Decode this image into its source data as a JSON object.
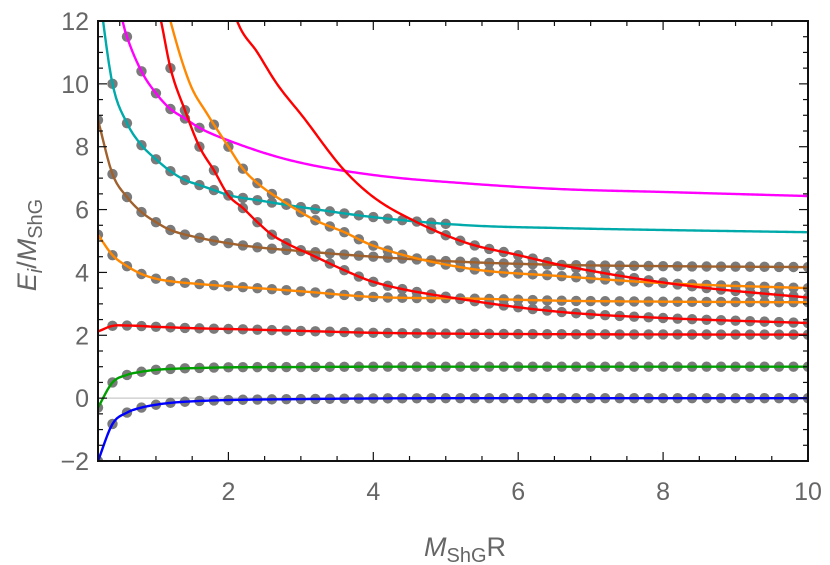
{
  "chart_data": {
    "type": "line",
    "title": "",
    "xlabel": {
      "main": "M",
      "sub": "ShG",
      "suffix": "R"
    },
    "ylabel": {
      "main": "E",
      "sub1": "i",
      "slash": "/",
      "main2": "M",
      "sub2": "ShG"
    },
    "xlim": [
      0.2,
      10
    ],
    "ylim": [
      -2,
      12
    ],
    "x_ticks": [
      2,
      4,
      6,
      8,
      10
    ],
    "x_tick_labels": [
      "2",
      "4",
      "6",
      "8",
      "10"
    ],
    "y_ticks": [
      -2,
      0,
      2,
      4,
      6,
      8,
      10,
      12
    ],
    "y_tick_labels": [
      "−2",
      "0",
      "2",
      "4",
      "6",
      "8",
      "10",
      "12"
    ],
    "grid": false,
    "zero_line": true,
    "marker_color": "#7a7a7a",
    "marker_step": 0.2,
    "series": [
      {
        "color": "#0000ff",
        "markers": [
          0.2,
          10
        ],
        "points": [
          [
            0.2,
            -2.0
          ],
          [
            0.4,
            -0.82
          ],
          [
            0.6,
            -0.46
          ],
          [
            0.8,
            -0.3
          ],
          [
            1.0,
            -0.21
          ],
          [
            1.2,
            -0.15
          ],
          [
            1.6,
            -0.09
          ],
          [
            2.0,
            -0.06
          ],
          [
            3.0,
            -0.03
          ],
          [
            4.0,
            -0.01
          ],
          [
            6.0,
            0.0
          ],
          [
            10.0,
            0.0
          ]
        ]
      },
      {
        "color": "#00a000",
        "markers": [
          0.2,
          10
        ],
        "points": [
          [
            0.2,
            -0.3
          ],
          [
            0.4,
            0.5
          ],
          [
            0.6,
            0.74
          ],
          [
            0.8,
            0.84
          ],
          [
            1.0,
            0.9
          ],
          [
            1.2,
            0.93
          ],
          [
            1.6,
            0.96
          ],
          [
            2.0,
            0.98
          ],
          [
            3.0,
            0.99
          ],
          [
            4.0,
            1.0
          ],
          [
            10.0,
            1.0
          ]
        ]
      },
      {
        "color": "#ff0000",
        "markers": [
          0.4,
          10
        ],
        "points": [
          [
            0.2,
            2.12
          ],
          [
            0.4,
            2.3
          ],
          [
            0.6,
            2.31
          ],
          [
            1.0,
            2.27
          ],
          [
            1.6,
            2.22
          ],
          [
            2.0,
            2.2
          ],
          [
            3.0,
            2.14
          ],
          [
            4.0,
            2.08
          ],
          [
            6.0,
            2.04
          ],
          [
            10.0,
            2.02
          ]
        ]
      },
      {
        "color": "#ff8800",
        "markers": [
          0.2,
          10
        ],
        "points": [
          [
            0.2,
            5.2
          ],
          [
            0.4,
            4.55
          ],
          [
            0.6,
            4.2
          ],
          [
            0.8,
            3.95
          ],
          [
            1.0,
            3.8
          ],
          [
            1.2,
            3.72
          ],
          [
            1.6,
            3.63
          ],
          [
            2.0,
            3.56
          ],
          [
            2.4,
            3.5
          ],
          [
            3.0,
            3.4
          ],
          [
            4.0,
            3.22
          ],
          [
            5.3,
            3.17
          ],
          [
            6.6,
            3.1
          ],
          [
            8.0,
            3.07
          ],
          [
            10.0,
            3.05
          ]
        ]
      },
      {
        "color": "#a0612d",
        "markers": [
          0.2,
          10
        ],
        "points": [
          [
            0.2,
            8.85
          ],
          [
            0.4,
            7.13
          ],
          [
            0.6,
            6.4
          ],
          [
            0.8,
            5.92
          ],
          [
            1.0,
            5.6
          ],
          [
            1.2,
            5.35
          ],
          [
            1.6,
            5.1
          ],
          [
            2.0,
            4.93
          ],
          [
            2.4,
            4.8
          ],
          [
            3.0,
            4.68
          ],
          [
            4.0,
            4.5
          ],
          [
            5.3,
            4.33
          ],
          [
            6.6,
            4.24
          ],
          [
            8.0,
            4.2
          ],
          [
            10.0,
            4.17
          ]
        ]
      },
      {
        "color": "#00aaaa",
        "markers": [
          0.4,
          5.0
        ],
        "points": [
          [
            0.22,
            13.0
          ],
          [
            0.27,
            12.0
          ],
          [
            0.4,
            10.0
          ],
          [
            0.6,
            8.75
          ],
          [
            0.8,
            8.05
          ],
          [
            1.0,
            7.6
          ],
          [
            1.2,
            7.22
          ],
          [
            1.4,
            6.94
          ],
          [
            1.6,
            6.78
          ],
          [
            1.8,
            6.62
          ],
          [
            2.0,
            6.46
          ],
          [
            2.4,
            6.3
          ],
          [
            3.0,
            6.08
          ],
          [
            4.0,
            5.76
          ],
          [
            5.3,
            5.5
          ],
          [
            6.6,
            5.41
          ],
          [
            8.0,
            5.35
          ],
          [
            10.0,
            5.28
          ]
        ]
      },
      {
        "color": "#ff00ff",
        "markers": [
          0.6,
          1.6
        ],
        "points": [
          [
            0.48,
            13.0
          ],
          [
            0.54,
            12.0
          ],
          [
            0.6,
            11.5
          ],
          [
            0.8,
            10.4
          ],
          [
            1.0,
            9.7
          ],
          [
            1.2,
            9.2
          ],
          [
            1.4,
            8.9
          ],
          [
            1.6,
            8.6
          ],
          [
            2.0,
            8.2
          ],
          [
            2.85,
            7.57
          ],
          [
            4.0,
            7.1
          ],
          [
            5.3,
            6.83
          ],
          [
            6.6,
            6.65
          ],
          [
            8.0,
            6.56
          ],
          [
            10.0,
            6.43
          ]
        ]
      },
      {
        "color": "#ff0000",
        "markers": [
          1.0,
          10
        ],
        "points": [
          [
            0.95,
            13.2
          ],
          [
            1.07,
            12.0
          ],
          [
            1.2,
            10.5
          ],
          [
            1.4,
            9.16
          ],
          [
            1.6,
            8.0
          ],
          [
            1.8,
            7.25
          ],
          [
            2.0,
            6.45
          ],
          [
            2.2,
            6.05
          ],
          [
            2.4,
            5.6
          ],
          [
            2.6,
            5.2
          ],
          [
            2.8,
            4.93
          ],
          [
            3.2,
            4.5
          ],
          [
            3.6,
            4.07
          ],
          [
            4.0,
            3.7
          ],
          [
            5.3,
            3.12
          ],
          [
            6.6,
            2.74
          ],
          [
            8.0,
            2.55
          ],
          [
            10.0,
            2.39
          ]
        ]
      },
      {
        "color": "#ff8800",
        "markers": [
          1.8,
          10
        ],
        "points": [
          [
            1.1,
            13.0
          ],
          [
            1.2,
            12.0
          ],
          [
            1.47,
            10.0
          ],
          [
            1.7,
            9.07
          ],
          [
            2.0,
            8.0
          ],
          [
            2.2,
            7.3
          ],
          [
            2.4,
            6.84
          ],
          [
            2.8,
            6.2
          ],
          [
            3.2,
            5.66
          ],
          [
            3.6,
            5.28
          ],
          [
            4.0,
            4.85
          ],
          [
            5.3,
            4.13
          ],
          [
            6.6,
            3.88
          ],
          [
            8.0,
            3.66
          ],
          [
            10.0,
            3.5
          ]
        ]
      },
      {
        "color": "#ff0000",
        "markers": [
          4.8,
          10
        ],
        "points": [
          [
            2.0,
            13.0
          ],
          [
            2.12,
            12.0
          ],
          [
            2.4,
            11.0
          ],
          [
            2.67,
            10.0
          ],
          [
            3.03,
            8.95
          ],
          [
            3.58,
            7.3
          ],
          [
            4.0,
            6.4
          ],
          [
            4.6,
            5.6
          ],
          [
            5.3,
            4.93
          ],
          [
            6.0,
            4.55
          ],
          [
            6.6,
            4.23
          ],
          [
            7.6,
            3.82
          ],
          [
            8.5,
            3.53
          ],
          [
            10.0,
            3.2
          ]
        ]
      }
    ]
  }
}
